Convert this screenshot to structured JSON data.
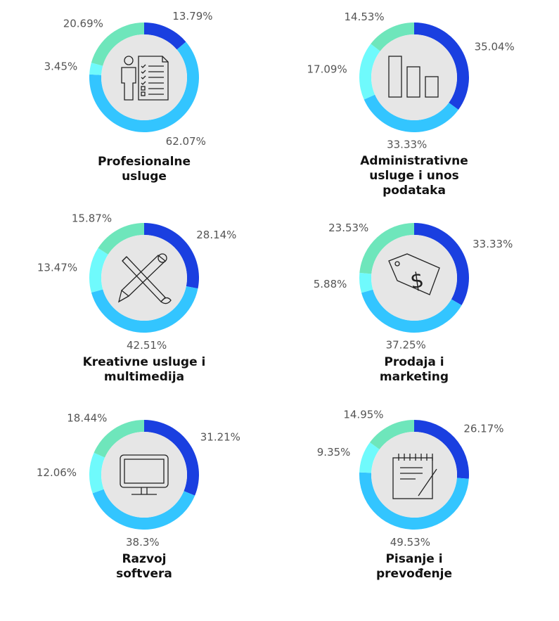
{
  "colors": {
    "series": [
      "#1a3fe0",
      "#33c5ff",
      "#6ffafc",
      "#6ee6bb"
    ],
    "inner_circle": "#e6e6e6",
    "icon_stroke": "#222222"
  },
  "chart_data": [
    {
      "type": "pie",
      "title_lines": [
        "Profesionalne",
        "usluge"
      ],
      "values": [
        13.79,
        62.07,
        3.45,
        20.69
      ],
      "labels": [
        "13.79%",
        "62.07%",
        "3.45%",
        "20.69%"
      ],
      "icon": "checklist-person-icon"
    },
    {
      "type": "pie",
      "title_lines": [
        "Administrativne",
        "usluge i unos",
        "podataka"
      ],
      "values": [
        35.04,
        33.33,
        17.09,
        14.53
      ],
      "labels": [
        "35.04%",
        "33.33%",
        "17.09%",
        "14.53%"
      ],
      "icon": "bar-chart-icon"
    },
    {
      "type": "pie",
      "title_lines": [
        "Kreativne usluge i",
        "multimedija"
      ],
      "values": [
        28.14,
        42.51,
        13.47,
        15.87
      ],
      "labels": [
        "28.14%",
        "42.51%",
        "13.47%",
        "15.87%"
      ],
      "icon": "pencil-brush-icon"
    },
    {
      "type": "pie",
      "title_lines": [
        "Prodaja i",
        "marketing"
      ],
      "values": [
        33.33,
        37.25,
        5.88,
        23.53
      ],
      "labels": [
        "33.33%",
        "37.25%",
        "5.88%",
        "23.53%"
      ],
      "icon": "price-tag-icon"
    },
    {
      "type": "pie",
      "title_lines": [
        "Razvoj",
        "softvera"
      ],
      "values": [
        31.21,
        38.3,
        12.06,
        18.44
      ],
      "labels": [
        "31.21%",
        "38.3%",
        "12.06%",
        "18.44%"
      ],
      "icon": "monitor-icon"
    },
    {
      "type": "pie",
      "title_lines": [
        "Pisanje i",
        "prevođenje"
      ],
      "values": [
        26.17,
        49.53,
        9.35,
        14.95
      ],
      "labels": [
        "26.17%",
        "49.53%",
        "9.35%",
        "14.95%"
      ],
      "icon": "notepad-pen-icon"
    }
  ]
}
